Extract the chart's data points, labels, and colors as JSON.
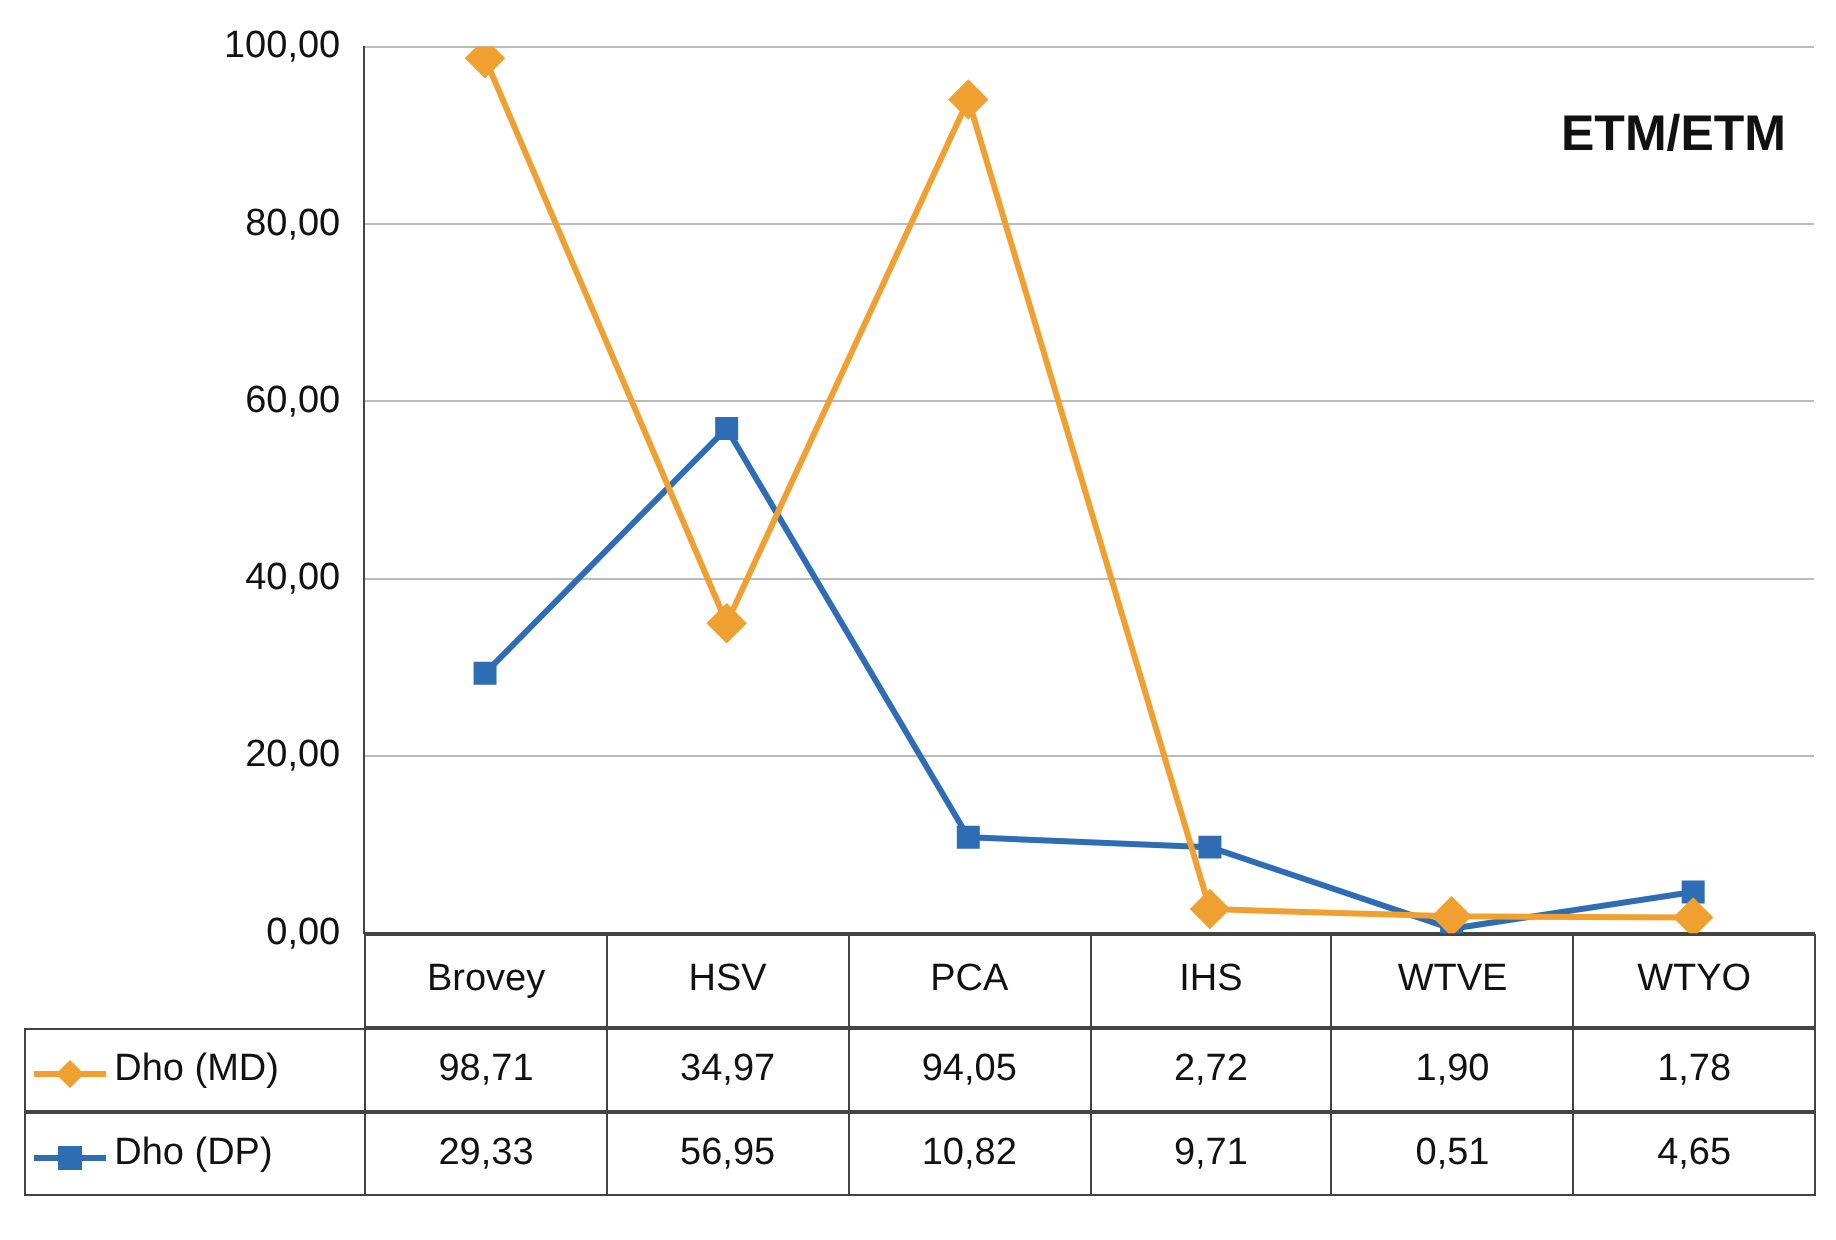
{
  "chart_data": {
    "type": "line",
    "title": "ETM/ETM",
    "categories": [
      "Brovey",
      "HSV",
      "PCA",
      "IHS",
      "WTVE",
      "WTYO"
    ],
    "series": [
      {
        "name": "Dho (MD)",
        "color": "#f0a030",
        "marker": "diamond",
        "values": [
          98.71,
          34.97,
          94.05,
          2.72,
          1.9,
          1.78
        ],
        "value_labels": [
          "98,71",
          "34,97",
          "94,05",
          "2,72",
          "1,90",
          "1,78"
        ]
      },
      {
        "name": "Dho (DP)",
        "color": "#2e6db4",
        "marker": "square",
        "values": [
          29.33,
          56.95,
          10.82,
          9.71,
          0.51,
          4.65
        ],
        "value_labels": [
          "29,33",
          "56,95",
          "10,82",
          "9,71",
          "0,51",
          "4,65"
        ]
      }
    ],
    "ylim": [
      0,
      100
    ],
    "yticks": [
      {
        "value": 0,
        "label": "0,00"
      },
      {
        "value": 20,
        "label": "20,00"
      },
      {
        "value": 40,
        "label": "40,00"
      },
      {
        "value": 60,
        "label": "60,00"
      },
      {
        "value": 80,
        "label": "80,00"
      },
      {
        "value": 100,
        "label": "100,00"
      }
    ],
    "grid": "y",
    "legend": "bottom"
  }
}
